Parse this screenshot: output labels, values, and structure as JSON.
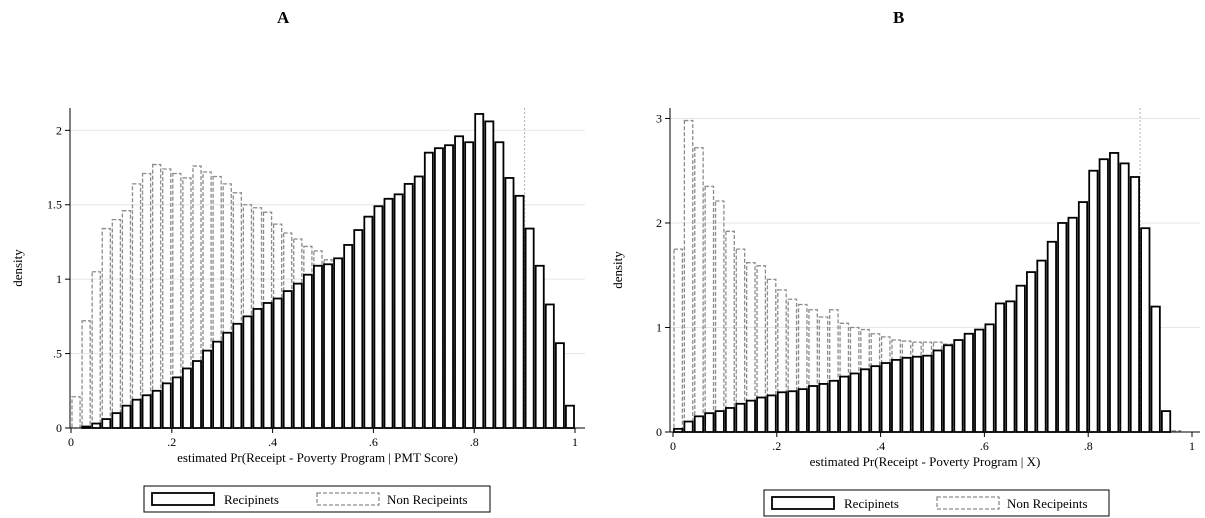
{
  "panels": [
    {
      "letter": "A",
      "chart_data": {
        "type": "bar",
        "subtype": "overlaid histogram",
        "xlabel": "estimated Pr(Receipt - Poverty Program | PMT Score)",
        "ylabel": "density",
        "xlim": [
          0,
          1
        ],
        "ylim": [
          0,
          2.15
        ],
        "x_ticks": [
          0,
          0.2,
          0.4,
          0.6,
          0.8,
          1
        ],
        "x_tick_labels": [
          "0",
          ".2",
          ".4",
          ".6",
          ".8",
          "1"
        ],
        "y_ticks": [
          0,
          0.5,
          1,
          1.5,
          2
        ],
        "y_tick_labels": [
          "0",
          ".5",
          "1",
          "1.5",
          "2"
        ],
        "grid": "horizontal",
        "vline_x": 0.9,
        "bin_width": 0.02,
        "bin_starts": [
          0,
          0.02,
          0.04,
          0.06,
          0.08,
          0.1,
          0.12,
          0.14,
          0.16,
          0.18,
          0.2,
          0.22,
          0.24,
          0.26,
          0.28,
          0.3,
          0.32,
          0.34,
          0.36,
          0.38,
          0.4,
          0.42,
          0.44,
          0.46,
          0.48,
          0.5,
          0.52,
          0.54,
          0.56,
          0.58,
          0.6,
          0.62,
          0.64,
          0.66,
          0.68,
          0.7,
          0.72,
          0.74,
          0.76,
          0.78,
          0.8,
          0.82,
          0.84,
          0.86,
          0.88,
          0.9,
          0.92,
          0.94,
          0.96,
          0.98
        ],
        "series": [
          {
            "name": "Non Recipeints",
            "style": "dashed",
            "color": "#8c8c8c",
            "values": [
              0.21,
              0.72,
              1.05,
              1.34,
              1.4,
              1.46,
              1.64,
              1.71,
              1.77,
              1.74,
              1.71,
              1.68,
              1.76,
              1.72,
              1.69,
              1.64,
              1.58,
              1.5,
              1.48,
              1.45,
              1.37,
              1.31,
              1.27,
              1.22,
              1.19,
              1.13,
              1.08,
              1.03,
              0.99,
              0.95,
              0.9,
              0.86,
              0.82,
              0.78,
              0.74,
              0.7,
              0.66,
              0.62,
              0.58,
              0.53,
              0.49,
              0.44,
              0.4,
              0.35,
              0.3,
              0.24,
              0.16,
              0.1,
              0.05,
              0.02
            ]
          },
          {
            "name": "Recipinets",
            "style": "solid",
            "color": "#000000",
            "values": [
              0.0,
              0.01,
              0.03,
              0.06,
              0.1,
              0.15,
              0.19,
              0.22,
              0.25,
              0.3,
              0.34,
              0.4,
              0.45,
              0.52,
              0.58,
              0.64,
              0.7,
              0.75,
              0.8,
              0.84,
              0.87,
              0.92,
              0.97,
              1.03,
              1.09,
              1.1,
              1.14,
              1.23,
              1.33,
              1.42,
              1.49,
              1.54,
              1.57,
              1.64,
              1.69,
              1.85,
              1.88,
              1.9,
              1.96,
              1.92,
              2.11,
              2.06,
              1.92,
              1.68,
              1.56,
              1.34,
              1.09,
              0.83,
              0.57,
              0.15
            ]
          }
        ]
      },
      "legend": [
        "Recipinets",
        "Non Recipeints"
      ]
    },
    {
      "letter": "B",
      "chart_data": {
        "type": "bar",
        "subtype": "overlaid histogram",
        "xlabel": "estimated Pr(Receipt -  Poverty Program | X)",
        "ylabel": "density",
        "xlim": [
          0,
          1
        ],
        "ylim": [
          0,
          3.1
        ],
        "x_ticks": [
          0,
          0.2,
          0.4,
          0.6,
          0.8,
          1
        ],
        "x_tick_labels": [
          "0",
          ".2",
          ".4",
          ".6",
          ".8",
          "1"
        ],
        "y_ticks": [
          0,
          1,
          2,
          3
        ],
        "y_tick_labels": [
          "0",
          "1",
          "2",
          "3"
        ],
        "grid": "horizontal",
        "vline_x": 0.9,
        "bin_width": 0.02,
        "bin_starts": [
          0,
          0.02,
          0.04,
          0.06,
          0.08,
          0.1,
          0.12,
          0.14,
          0.16,
          0.18,
          0.2,
          0.22,
          0.24,
          0.26,
          0.28,
          0.3,
          0.32,
          0.34,
          0.36,
          0.38,
          0.4,
          0.42,
          0.44,
          0.46,
          0.48,
          0.5,
          0.52,
          0.54,
          0.56,
          0.58,
          0.6,
          0.62,
          0.64,
          0.66,
          0.68,
          0.7,
          0.72,
          0.74,
          0.76,
          0.78,
          0.8,
          0.82,
          0.84,
          0.86,
          0.88,
          0.9,
          0.92,
          0.94,
          0.96,
          0.98
        ],
        "series": [
          {
            "name": "Non Recipeints",
            "style": "dashed",
            "color": "#8c8c8c",
            "values": [
              1.75,
              2.98,
              2.72,
              2.35,
              2.21,
              1.92,
              1.75,
              1.62,
              1.59,
              1.46,
              1.36,
              1.27,
              1.22,
              1.17,
              1.1,
              1.17,
              1.04,
              1.0,
              0.98,
              0.94,
              0.91,
              0.88,
              0.87,
              0.86,
              0.86,
              0.86,
              0.84,
              0.8,
              0.79,
              0.79,
              0.78,
              0.77,
              0.77,
              0.76,
              0.75,
              0.74,
              0.72,
              0.69,
              0.65,
              0.6,
              0.55,
              0.45,
              0.35,
              0.25,
              0.15,
              0.08,
              0.04,
              0.02,
              0.01,
              0.0
            ]
          },
          {
            "name": "Recipinets",
            "style": "solid",
            "color": "#000000",
            "values": [
              0.03,
              0.1,
              0.15,
              0.18,
              0.2,
              0.23,
              0.27,
              0.3,
              0.33,
              0.35,
              0.38,
              0.39,
              0.41,
              0.44,
              0.46,
              0.49,
              0.53,
              0.56,
              0.6,
              0.63,
              0.66,
              0.69,
              0.71,
              0.72,
              0.73,
              0.78,
              0.83,
              0.88,
              0.94,
              0.98,
              1.03,
              1.23,
              1.25,
              1.4,
              1.53,
              1.64,
              1.82,
              2.0,
              2.05,
              2.2,
              2.5,
              2.61,
              2.67,
              2.57,
              2.44,
              1.95,
              1.2,
              0.2,
              0.0,
              0.0
            ]
          }
        ]
      },
      "legend": [
        "Recipinets",
        "Non Recipeints"
      ]
    }
  ]
}
